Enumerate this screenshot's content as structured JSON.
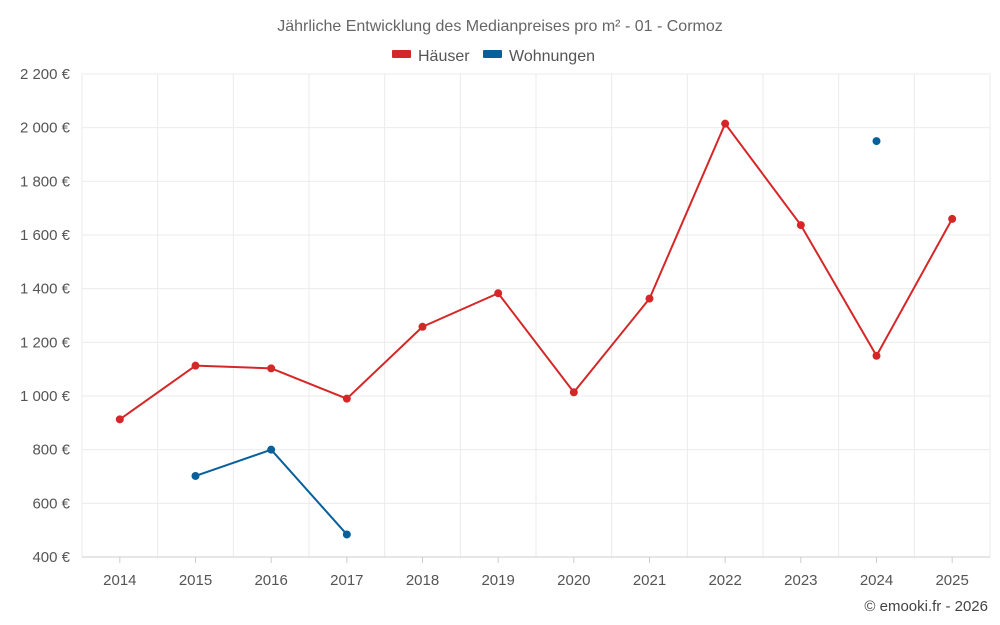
{
  "chart_data": {
    "type": "line",
    "title": "Jährliche Entwicklung des Medianpreises pro m² - 01 - Cormoz",
    "categories": [
      "2014",
      "2015",
      "2016",
      "2017",
      "2018",
      "2019",
      "2020",
      "2021",
      "2022",
      "2023",
      "2024",
      "2025"
    ],
    "series": [
      {
        "name": "Häuser",
        "color": "#d62728",
        "values": [
          913,
          1113,
          1103,
          990,
          1258,
          1383,
          1014,
          1363,
          2015,
          1637,
          1150,
          1660
        ]
      },
      {
        "name": "Wohnungen",
        "color": "#08609a",
        "values": [
          null,
          702,
          800,
          484,
          null,
          null,
          null,
          null,
          null,
          null,
          1950,
          null
        ]
      }
    ],
    "ylim": [
      400,
      2200
    ],
    "yticks": [
      400,
      600,
      800,
      1000,
      1200,
      1400,
      1600,
      1800,
      2000,
      2200
    ],
    "ytick_labels": [
      "400 €",
      "600 €",
      "800 €",
      "1 000 €",
      "1 200 €",
      "1 400 €",
      "1 600 €",
      "1 800 €",
      "2 000 €",
      "2 200 €"
    ],
    "grid": true,
    "legend_position": "top-center"
  },
  "credit": "© emooki.fr - 2026"
}
